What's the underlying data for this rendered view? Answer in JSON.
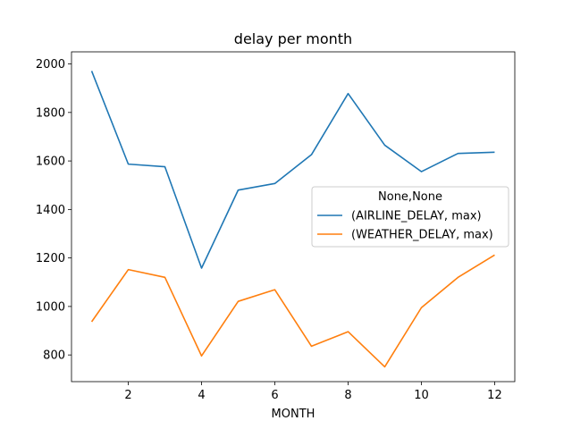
{
  "chart_data": {
    "type": "line",
    "title": "delay per month",
    "xlabel": "MONTH",
    "ylabel": "",
    "x": [
      1,
      2,
      3,
      4,
      5,
      6,
      7,
      8,
      9,
      10,
      11,
      12
    ],
    "xlim": [
      0.45,
      12.55
    ],
    "ylim": [
      690,
      2050
    ],
    "xticks": [
      2,
      4,
      6,
      8,
      10,
      12
    ],
    "yticks": [
      800,
      1000,
      1200,
      1400,
      1600,
      1800,
      2000
    ],
    "grid": false,
    "legend": {
      "title": "None,None",
      "placement": "center-right"
    },
    "series": [
      {
        "name": "(AIRLINE_DELAY, max)",
        "color": "#1f77b4",
        "values": [
          1971,
          1587,
          1576,
          1158,
          1480,
          1507,
          1626,
          1878,
          1665,
          1556,
          1631,
          1636
        ]
      },
      {
        "name": "(WEATHER_DELAY, max)",
        "color": "#ff7f0e",
        "values": [
          937,
          1152,
          1120,
          796,
          1021,
          1069,
          836,
          896,
          751,
          995,
          1120,
          1212
        ]
      }
    ]
  }
}
